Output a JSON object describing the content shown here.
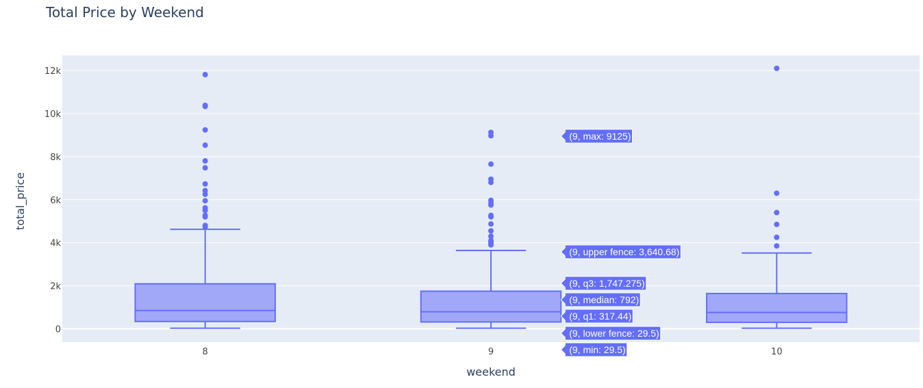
{
  "chart_data": {
    "type": "box",
    "title": "Total Price by Weekend",
    "xlabel": "weekend",
    "ylabel": "total_price",
    "categories": [
      "8",
      "9",
      "10"
    ],
    "y_ticks": [
      {
        "value": 0,
        "label": "0"
      },
      {
        "value": 2000,
        "label": "2k"
      },
      {
        "value": 4000,
        "label": "4k"
      },
      {
        "value": 6000,
        "label": "6k"
      },
      {
        "value": 8000,
        "label": "8k"
      },
      {
        "value": 10000,
        "label": "10k"
      },
      {
        "value": 12000,
        "label": "12k"
      }
    ],
    "ylim": [
      -620,
      12700
    ],
    "grid": true,
    "colors": {
      "line": "#636efa",
      "fill": "#a2a8f8",
      "plot_bg": "#e5ecf6",
      "grid": "#ffffff",
      "hover_bg": "#636efa"
    },
    "boxes": [
      {
        "category": "8",
        "min": 29.5,
        "q1": 340,
        "median": 850,
        "q3": 2090,
        "upper_fence": 4620,
        "outliers": [
          4730,
          4800,
          5200,
          5270,
          5500,
          5620,
          5950,
          6250,
          6420,
          6730,
          7480,
          7800,
          8530,
          9240,
          10330,
          10380,
          11810
        ]
      },
      {
        "category": "9",
        "min": 29.5,
        "lower_fence": 29.5,
        "q1": 317.44,
        "median": 792,
        "q3": 1747.275,
        "upper_fence": 3640.68,
        "max": 9125,
        "outliers": [
          3900,
          3980,
          4050,
          4100,
          4300,
          4550,
          4870,
          5200,
          5270,
          5750,
          5850,
          5970,
          6800,
          6950,
          7650,
          8970,
          9125
        ]
      },
      {
        "category": "10",
        "min": 29.5,
        "q1": 300,
        "median": 760,
        "q3": 1640,
        "upper_fence": 3520,
        "outliers": [
          3850,
          4250,
          4850,
          5400,
          6300,
          12100
        ]
      }
    ],
    "hover_labels": [
      {
        "key": "max",
        "text": "(9, max: 9125)",
        "value": 9125
      },
      {
        "key": "upper_fence",
        "text": "(9, upper fence: 3,640.68)",
        "value": 3640.68
      },
      {
        "key": "q3",
        "text": "(9, q3: 1,747.275)",
        "value": 1747.275
      },
      {
        "key": "median",
        "text": "(9, median: 792)",
        "value": 792
      },
      {
        "key": "q1",
        "text": "(9, q1: 317.44)",
        "value": 317.44
      },
      {
        "key": "lower_fence",
        "text": "(9, lower fence: 29.5)",
        "value": 29.5
      },
      {
        "key": "min",
        "text": "(9, min: 29.5)",
        "value": 29.5
      }
    ]
  }
}
